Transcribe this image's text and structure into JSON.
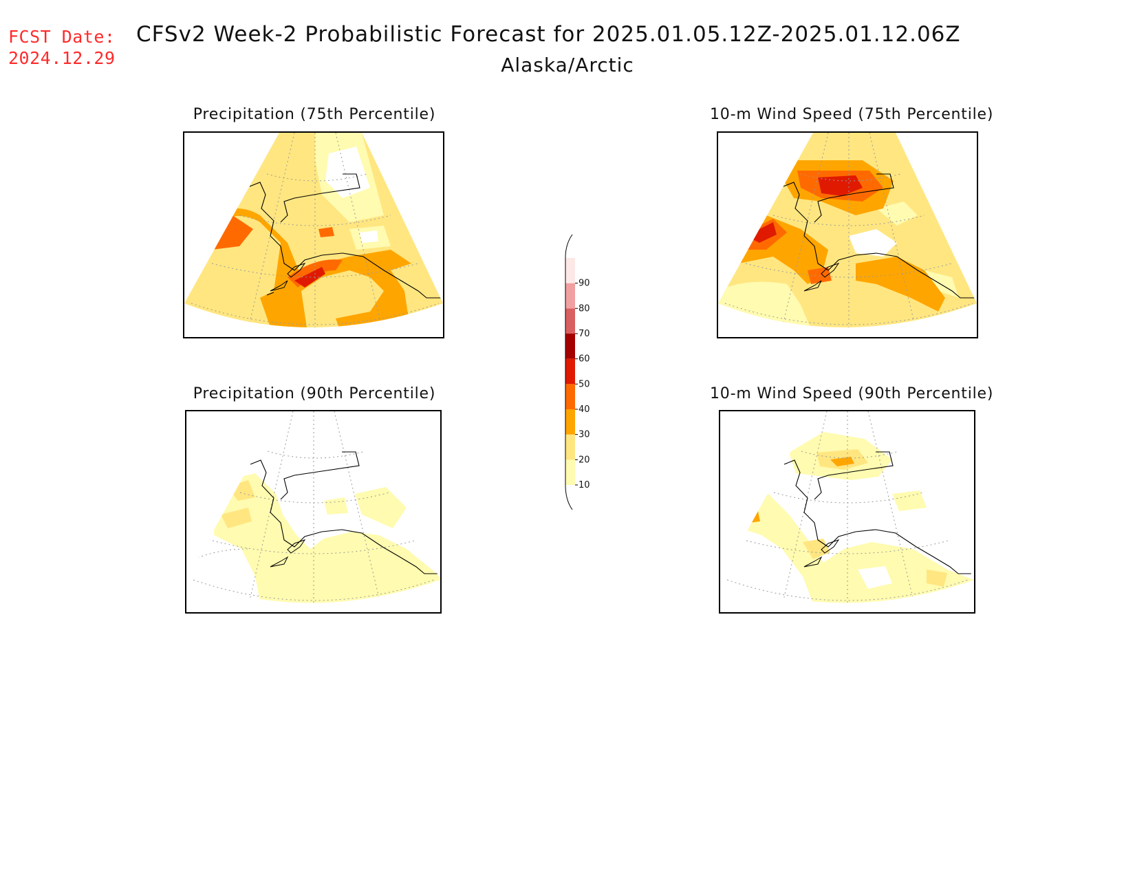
{
  "header": {
    "fcst_label": "FCST Date:",
    "fcst_date": "2024.12.29",
    "title": "CFSv2 Week-2 Probabilistic Forecast for 2025.01.05.12Z-2025.01.12.06Z",
    "region": "Alaska/Arctic"
  },
  "panels": [
    {
      "key": "p75",
      "title": "Precipitation (75th Percentile)"
    },
    {
      "key": "w75",
      "title": "10-m Wind Speed (75th Percentile)"
    },
    {
      "key": "p90",
      "title": "Precipitation (90th Percentile)"
    },
    {
      "key": "w90",
      "title": "10-m Wind Speed (90th Percentile)"
    }
  ],
  "colorbar": {
    "levels": [
      "10",
      "20",
      "30",
      "40",
      "50",
      "60",
      "70",
      "80",
      "90"
    ],
    "colors": [
      "#fffbb0",
      "#ffe680",
      "#ffa500",
      "#ff6a00",
      "#e01a00",
      "#a50000",
      "#d96060",
      "#f0a0a0",
      "#fde8e8"
    ],
    "unit_note": ""
  }
}
